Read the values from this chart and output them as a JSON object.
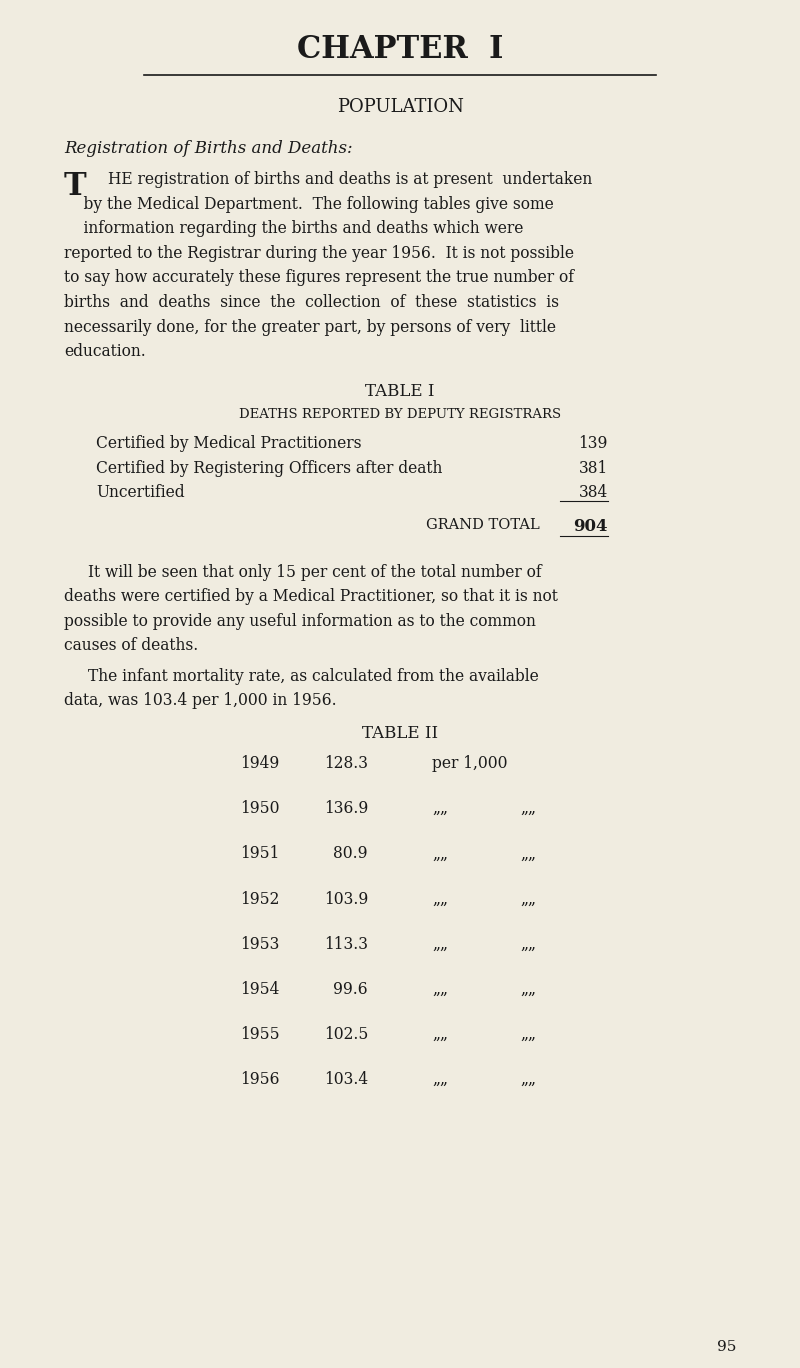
{
  "background_color": "#f0ece0",
  "text_color": "#1a1a1a",
  "page_width": 8.0,
  "page_height": 13.68,
  "chapter_title": "CHAPTER  I",
  "section_title": "POPULATION",
  "subsection_italic": "Registration of Births and Deaths:",
  "drop_cap": "T",
  "paragraph1": "HE registration of births and deaths is at present undertaken\n    by the Medical Department.  The following tables give some\n    information regarding the births and deaths which were\nreported to the Registrar during the year 1956.  It is not possible\nto say how accurately these figures represent the true number of\nbirths  and  deaths  since  the  collection  of  these  statistics  is\nnecessarily done,  for  the  greater  part,  by  persons  of  very  little\neducation.",
  "table1_title": "TABLE I",
  "table1_subtitle": "DEATHS REPORTED BY DEPUTY REGISTRARS",
  "table1_rows": [
    [
      "Certified by Medical Practitioners",
      "139"
    ],
    [
      "Certified by Registering Officers after death",
      "381"
    ],
    [
      "Uncertified",
      "384"
    ]
  ],
  "table1_total_label": "GRAND TOTAL",
  "table1_total_value": "904",
  "paragraph2": "It will be seen that only 15 per cent of the total number of\ndeaths were certified by a Medical Practitioner, so that it is not\npossible to provide any useful information as to the common\ncauses of deaths.",
  "paragraph3": "The infant mortality rate, as calculated from the available\ndata, was 103.4 per 1,000 in 1956.",
  "table2_title": "TABLE II",
  "table2_rows": [
    [
      "1949",
      "128.3",
      "per 1,000"
    ],
    [
      "1950",
      "136.9",
      "„„"
    ],
    [
      "1951",
      "80.9",
      "„„"
    ],
    [
      "1952",
      "103.9",
      "„„"
    ],
    [
      "1953",
      "113.3",
      "„„"
    ],
    [
      "1954",
      "99.6",
      "„„"
    ],
    [
      "1955",
      "102.5",
      "„„"
    ],
    [
      "1956",
      "103.4",
      "„„"
    ]
  ],
  "page_number": "95"
}
